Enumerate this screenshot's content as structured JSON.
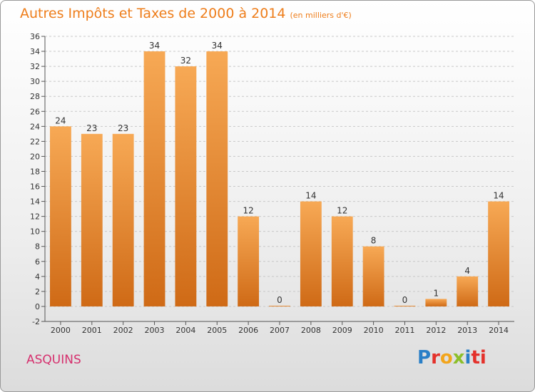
{
  "header": {
    "title": "Autres Impôts et Taxes de 2000 à 2014",
    "unit": "(en milliers d'€)"
  },
  "commune": "ASQUINS",
  "logo": [
    "P",
    "r",
    "o",
    "x",
    "i",
    "ti"
  ],
  "colors": {
    "bar_light": "#f7a955",
    "bar_dark": "#cf6a16",
    "title": "#ee7d1a",
    "commune": "#d6306e"
  },
  "chart_data": {
    "type": "bar",
    "title": "Autres Impôts et Taxes de 2000 à 2014",
    "subtitle": "(en milliers d'€)",
    "categories": [
      "2000",
      "2001",
      "2002",
      "2003",
      "2004",
      "2005",
      "2006",
      "2007",
      "2008",
      "2009",
      "2010",
      "2011",
      "2012",
      "2013",
      "2014"
    ],
    "values": [
      24,
      23,
      23,
      34,
      32,
      34,
      12,
      0,
      14,
      12,
      8,
      0,
      1,
      4,
      14
    ],
    "ylim": [
      -2,
      36
    ],
    "yticks": [
      -2,
      0,
      2,
      4,
      6,
      8,
      10,
      12,
      14,
      16,
      18,
      20,
      22,
      24,
      26,
      28,
      30,
      32,
      34,
      36
    ],
    "grid": "horizontal dashed",
    "legend": "none"
  }
}
